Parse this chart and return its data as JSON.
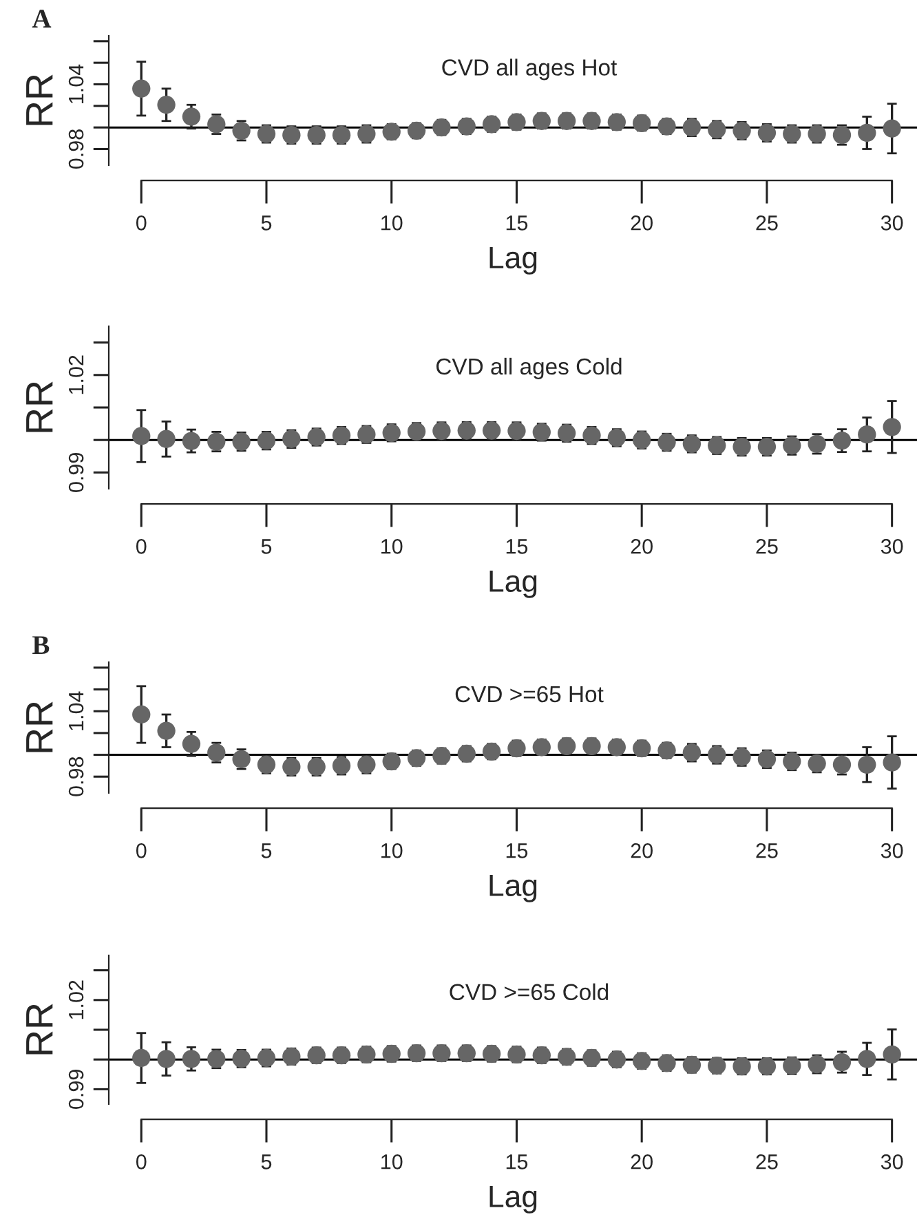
{
  "chart_data": [
    {
      "type": "scatter",
      "title": "CVD all ages Hot",
      "xlabel": "Lag",
      "ylabel": "RR",
      "annotations": [
        "A"
      ],
      "marker": "circle",
      "grid": false,
      "x": [
        0,
        1,
        2,
        3,
        4,
        5,
        6,
        7,
        8,
        9,
        10,
        11,
        12,
        13,
        14,
        15,
        16,
        17,
        18,
        19,
        20,
        21,
        22,
        23,
        24,
        25,
        26,
        27,
        28,
        29,
        30
      ],
      "series": [
        {
          "color": "#666666",
          "values": [
            1.036,
            1.021,
            1.01,
            1.003,
            0.997,
            0.994,
            0.993,
            0.993,
            0.993,
            0.994,
            0.996,
            0.997,
            1.0,
            1.001,
            1.003,
            1.005,
            1.006,
            1.006,
            1.006,
            1.005,
            1.004,
            1.001,
            1.0,
            0.998,
            0.997,
            0.995,
            0.994,
            0.994,
            0.993,
            0.995,
            0.999
          ],
          "errors": [
            0.025,
            0.015,
            0.011,
            0.009,
            0.009,
            0.008,
            0.008,
            0.008,
            0.008,
            0.008,
            0.007,
            0.007,
            0.007,
            0.007,
            0.007,
            0.007,
            0.007,
            0.007,
            0.007,
            0.007,
            0.007,
            0.007,
            0.008,
            0.008,
            0.008,
            0.008,
            0.008,
            0.008,
            0.009,
            0.015,
            0.023
          ]
        }
      ],
      "xlim": [
        -1.3,
        31
      ],
      "xticks": [
        0,
        5,
        10,
        15,
        20,
        25,
        30
      ],
      "ylim": [
        0.965,
        1.085
      ],
      "yticks": [
        0.98,
        {
          "value": 1.0,
          "label": null
        },
        {
          "value": 1.02,
          "label": null
        },
        1.04,
        {
          "value": 1.06,
          "label": null
        },
        {
          "value": 1.08,
          "label": null
        }
      ],
      "ref_lines": [
        {
          "axis": "y",
          "value": 1.0,
          "color": "#000000"
        }
      ]
    },
    {
      "type": "scatter",
      "title": "CVD all ages Cold",
      "xlabel": "Lag",
      "ylabel": "RR",
      "marker": "circle",
      "grid": false,
      "x": [
        0,
        1,
        2,
        3,
        4,
        5,
        6,
        7,
        8,
        9,
        10,
        11,
        12,
        13,
        14,
        15,
        16,
        17,
        18,
        19,
        20,
        21,
        22,
        23,
        24,
        25,
        26,
        27,
        28,
        29,
        30
      ],
      "series": [
        {
          "color": "#666666",
          "values": [
            1.0012,
            1.0003,
            0.9997,
            0.9995,
            0.9995,
            0.9998,
            1.0003,
            1.0009,
            1.0014,
            1.0017,
            1.0022,
            1.0026,
            1.0028,
            1.0029,
            1.0029,
            1.0028,
            1.0024,
            1.0021,
            1.0014,
            1.0007,
            1.0,
            0.9993,
            0.9988,
            0.9983,
            0.9979,
            0.9979,
            0.9983,
            0.9988,
            0.9998,
            1.0017,
            1.004
          ],
          "errors": [
            0.008,
            0.0054,
            0.0035,
            0.003,
            0.0028,
            0.0027,
            0.0027,
            0.0026,
            0.0026,
            0.0026,
            0.0026,
            0.0026,
            0.0026,
            0.0026,
            0.0026,
            0.0026,
            0.0026,
            0.0026,
            0.0026,
            0.0026,
            0.0026,
            0.0026,
            0.0026,
            0.0026,
            0.0027,
            0.0027,
            0.0028,
            0.003,
            0.0035,
            0.0052,
            0.008
          ]
        }
      ],
      "xlim": [
        -1.3,
        31
      ],
      "xticks": [
        0,
        5,
        10,
        15,
        20,
        25,
        30
      ],
      "ylim": [
        0.985,
        1.035
      ],
      "yticks": [
        0.99,
        {
          "value": 1.0,
          "label": null
        },
        {
          "value": 1.01,
          "label": null
        },
        1.02,
        {
          "value": 1.03,
          "label": null
        }
      ],
      "ref_lines": [
        {
          "axis": "y",
          "value": 1.0,
          "color": "#000000"
        }
      ]
    },
    {
      "type": "scatter",
      "title": "CVD >=65 Hot",
      "xlabel": "Lag",
      "ylabel": "RR",
      "annotations": [
        "B"
      ],
      "marker": "circle",
      "grid": false,
      "x": [
        0,
        1,
        2,
        3,
        4,
        5,
        6,
        7,
        8,
        9,
        10,
        11,
        12,
        13,
        14,
        15,
        16,
        17,
        18,
        19,
        20,
        21,
        22,
        23,
        24,
        25,
        26,
        27,
        28,
        29,
        30
      ],
      "series": [
        {
          "color": "#666666",
          "values": [
            1.037,
            1.022,
            1.01,
            1.002,
            0.996,
            0.991,
            0.989,
            0.989,
            0.99,
            0.991,
            0.994,
            0.997,
            0.999,
            1.001,
            1.003,
            1.006,
            1.007,
            1.008,
            1.008,
            1.007,
            1.006,
            1.004,
            1.002,
            1.0,
            0.998,
            0.996,
            0.994,
            0.992,
            0.991,
            0.991,
            0.993
          ],
          "errors": [
            0.026,
            0.015,
            0.011,
            0.009,
            0.009,
            0.008,
            0.008,
            0.008,
            0.008,
            0.008,
            0.007,
            0.007,
            0.007,
            0.007,
            0.007,
            0.007,
            0.007,
            0.007,
            0.007,
            0.007,
            0.007,
            0.007,
            0.008,
            0.008,
            0.008,
            0.008,
            0.008,
            0.008,
            0.009,
            0.016,
            0.024
          ]
        }
      ],
      "xlim": [
        -1.3,
        31
      ],
      "xticks": [
        0,
        5,
        10,
        15,
        20,
        25,
        30
      ],
      "ylim": [
        0.965,
        1.085
      ],
      "yticks": [
        0.98,
        {
          "value": 1.0,
          "label": null
        },
        {
          "value": 1.02,
          "label": null
        },
        1.04,
        {
          "value": 1.06,
          "label": null
        },
        {
          "value": 1.08,
          "label": null
        }
      ],
      "ref_lines": [
        {
          "axis": "y",
          "value": 1.0,
          "color": "#000000"
        }
      ]
    },
    {
      "type": "scatter",
      "title": "CVD >=65 Cold",
      "xlabel": "Lag",
      "ylabel": "RR",
      "marker": "circle",
      "grid": false,
      "x": [
        0,
        1,
        2,
        3,
        4,
        5,
        6,
        7,
        8,
        9,
        10,
        11,
        12,
        13,
        14,
        15,
        16,
        17,
        18,
        19,
        20,
        21,
        22,
        23,
        24,
        25,
        26,
        27,
        28,
        29,
        30
      ],
      "series": [
        {
          "color": "#666666",
          "values": [
            1.0005,
            1.0002,
            1.0002,
            1.0002,
            1.0003,
            1.0005,
            1.001,
            1.0014,
            1.0014,
            1.0017,
            1.0019,
            1.0021,
            1.0021,
            1.0021,
            1.0019,
            1.0017,
            1.0014,
            1.0009,
            1.0005,
            1.0,
            0.9995,
            0.9988,
            0.9982,
            0.9979,
            0.9977,
            0.9977,
            0.9979,
            0.9984,
            0.9991,
            1.0002,
            1.0017
          ],
          "errors": [
            0.0084,
            0.0056,
            0.0039,
            0.0031,
            0.0029,
            0.0028,
            0.0027,
            0.0026,
            0.0026,
            0.0026,
            0.0026,
            0.0026,
            0.0026,
            0.0026,
            0.0026,
            0.0026,
            0.0026,
            0.0026,
            0.0026,
            0.0026,
            0.0026,
            0.0026,
            0.0026,
            0.0026,
            0.0027,
            0.0027,
            0.0028,
            0.003,
            0.0035,
            0.0054,
            0.0084
          ]
        }
      ],
      "xlim": [
        -1.3,
        31
      ],
      "xticks": [
        0,
        5,
        10,
        15,
        20,
        25,
        30
      ],
      "ylim": [
        0.985,
        1.035
      ],
      "yticks": [
        0.99,
        {
          "value": 1.0,
          "label": null
        },
        {
          "value": 1.01,
          "label": null
        },
        1.02,
        {
          "value": 1.03,
          "label": null
        }
      ],
      "ref_lines": [
        {
          "axis": "y",
          "value": 1.0,
          "color": "#000000"
        }
      ]
    }
  ]
}
